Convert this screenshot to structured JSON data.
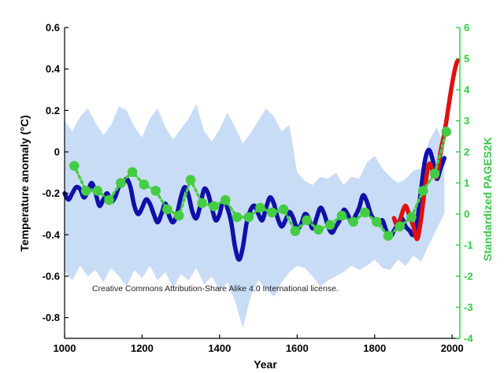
{
  "chart_data": {
    "type": "line",
    "xlabel": "Year",
    "ylabel": "Temperature anomaly (°C)",
    "ylabel_right": "Standardized PAGES2K",
    "xlim": [
      1000,
      2020
    ],
    "ylim": [
      -0.9,
      0.6
    ],
    "ylim_right": [
      -4,
      6
    ],
    "x_ticks": [
      1000,
      1200,
      1400,
      1600,
      1800,
      2000
    ],
    "y_ticks": [
      0.6,
      0.4,
      0.2,
      0,
      -0.2,
      -0.4,
      -0.6,
      -0.8
    ],
    "y_ticks_right": [
      6,
      5,
      4,
      3,
      2,
      1,
      0,
      -1,
      -2,
      -3,
      -4
    ],
    "grid": false,
    "annotation": "Creative Commons Attribution-Share Alike 4.0 International license.",
    "colors": {
      "band": "#c9dcf5",
      "reconstruction": "#1010a8",
      "instrumental": "#dd1111",
      "pages2k": "#44cc44",
      "right_axis": "#2ecc40"
    },
    "uncertainty_band": {
      "x": [
        1000,
        1020,
        1040,
        1060,
        1080,
        1100,
        1120,
        1140,
        1160,
        1180,
        1200,
        1220,
        1240,
        1260,
        1280,
        1300,
        1320,
        1340,
        1360,
        1380,
        1400,
        1420,
        1440,
        1460,
        1480,
        1500,
        1520,
        1540,
        1560,
        1580,
        1600,
        1620,
        1640,
        1660,
        1680,
        1700,
        1720,
        1740,
        1760,
        1780,
        1800,
        1820,
        1840,
        1860,
        1880,
        1900,
        1920,
        1940,
        1960,
        1980
      ],
      "upper": [
        0.15,
        0.1,
        0.17,
        0.21,
        0.14,
        0.08,
        0.13,
        0.22,
        0.2,
        0.12,
        0.07,
        0.16,
        0.21,
        0.12,
        0.06,
        0.11,
        0.16,
        0.23,
        0.1,
        0.05,
        0.11,
        0.19,
        0.12,
        0.04,
        0.09,
        0.15,
        0.21,
        0.17,
        0.1,
        0.13,
        -0.1,
        -0.14,
        -0.16,
        -0.12,
        -0.13,
        -0.1,
        -0.16,
        -0.12,
        -0.13,
        -0.05,
        -0.02,
        -0.08,
        -0.12,
        -0.15,
        -0.13,
        -0.09,
        -0.08,
        0.05,
        0.12,
        0.03
      ],
      "lower": [
        -0.58,
        -0.62,
        -0.55,
        -0.6,
        -0.57,
        -0.63,
        -0.56,
        -0.6,
        -0.65,
        -0.57,
        -0.61,
        -0.55,
        -0.62,
        -0.58,
        -0.66,
        -0.59,
        -0.62,
        -0.56,
        -0.64,
        -0.6,
        -0.67,
        -0.63,
        -0.72,
        -0.85,
        -0.7,
        -0.62,
        -0.66,
        -0.7,
        -0.63,
        -0.58,
        -0.55,
        -0.56,
        -0.6,
        -0.65,
        -0.62,
        -0.6,
        -0.58,
        -0.55,
        -0.57,
        -0.55,
        -0.52,
        -0.56,
        -0.57,
        -0.52,
        -0.55,
        -0.5,
        -0.53,
        -0.45,
        -0.37,
        -0.3
      ]
    },
    "series": [
      {
        "name": "",
        "axis": "left",
        "x": [
          1000,
          1010,
          1020,
          1030,
          1040,
          1050,
          1060,
          1070,
          1080,
          1090,
          1100,
          1110,
          1120,
          1130,
          1140,
          1150,
          1160,
          1170,
          1180,
          1190,
          1200,
          1210,
          1220,
          1230,
          1240,
          1250,
          1260,
          1270,
          1280,
          1290,
          1300,
          1310,
          1320,
          1330,
          1340,
          1350,
          1360,
          1370,
          1380,
          1390,
          1400,
          1410,
          1420,
          1430,
          1440,
          1450,
          1460,
          1470,
          1480,
          1490,
          1500,
          1510,
          1520,
          1530,
          1540,
          1550,
          1560,
          1570,
          1580,
          1590,
          1600,
          1610,
          1620,
          1630,
          1640,
          1650,
          1660,
          1670,
          1680,
          1690,
          1700,
          1710,
          1720,
          1730,
          1740,
          1750,
          1760,
          1770,
          1780,
          1790,
          1800,
          1810,
          1820,
          1830,
          1840,
          1850,
          1860,
          1870,
          1880,
          1890,
          1900,
          1910,
          1920,
          1930,
          1940,
          1950,
          1960,
          1970,
          1980
        ],
        "y": [
          -0.2,
          -0.23,
          -0.2,
          -0.17,
          -0.18,
          -0.22,
          -0.19,
          -0.15,
          -0.2,
          -0.26,
          -0.23,
          -0.2,
          -0.24,
          -0.22,
          -0.17,
          -0.16,
          -0.13,
          -0.17,
          -0.26,
          -0.3,
          -0.27,
          -0.23,
          -0.25,
          -0.3,
          -0.34,
          -0.3,
          -0.25,
          -0.31,
          -0.34,
          -0.3,
          -0.22,
          -0.17,
          -0.21,
          -0.29,
          -0.32,
          -0.26,
          -0.18,
          -0.2,
          -0.27,
          -0.33,
          -0.3,
          -0.23,
          -0.27,
          -0.34,
          -0.46,
          -0.52,
          -0.46,
          -0.34,
          -0.28,
          -0.26,
          -0.3,
          -0.33,
          -0.27,
          -0.22,
          -0.25,
          -0.32,
          -0.36,
          -0.33,
          -0.29,
          -0.32,
          -0.37,
          -0.35,
          -0.3,
          -0.32,
          -0.37,
          -0.32,
          -0.27,
          -0.3,
          -0.36,
          -0.39,
          -0.36,
          -0.33,
          -0.28,
          -0.3,
          -0.34,
          -0.31,
          -0.27,
          -0.21,
          -0.24,
          -0.3,
          -0.33,
          -0.35,
          -0.33,
          -0.38,
          -0.41,
          -0.38,
          -0.35,
          -0.32,
          -0.36,
          -0.38,
          -0.4,
          -0.33,
          -0.18,
          -0.04,
          0.01,
          -0.04,
          -0.13,
          -0.08,
          -0.03
        ]
      },
      {
        "name": "",
        "axis": "left",
        "x": [
          1850,
          1860,
          1870,
          1880,
          1890,
          1900,
          1910,
          1920,
          1930,
          1940,
          1950,
          1960,
          1970,
          1980,
          1990,
          2000,
          2010,
          2015
        ],
        "y": [
          -0.32,
          -0.36,
          -0.3,
          -0.26,
          -0.31,
          -0.36,
          -0.42,
          -0.32,
          -0.17,
          -0.06,
          -0.09,
          -0.12,
          0.0,
          0.09,
          0.21,
          0.33,
          0.42,
          0.44
        ]
      },
      {
        "name": "",
        "axis": "right",
        "x": [
          1025,
          1055,
          1085,
          1115,
          1145,
          1175,
          1205,
          1235,
          1265,
          1295,
          1325,
          1355,
          1385,
          1415,
          1445,
          1475,
          1505,
          1535,
          1565,
          1595,
          1625,
          1655,
          1685,
          1715,
          1745,
          1775,
          1805,
          1835,
          1865,
          1895,
          1925,
          1955,
          1985
        ],
        "y": [
          1.55,
          0.75,
          0.75,
          0.45,
          1.0,
          1.35,
          0.95,
          0.75,
          0.15,
          -0.05,
          1.1,
          0.35,
          0.25,
          0.45,
          -0.1,
          -0.1,
          0.2,
          0.05,
          0.15,
          -0.55,
          -0.2,
          -0.5,
          -0.35,
          -0.05,
          -0.25,
          0.05,
          -0.25,
          -0.7,
          -0.4,
          -0.1,
          0.75,
          1.3,
          2.65
        ]
      }
    ]
  }
}
